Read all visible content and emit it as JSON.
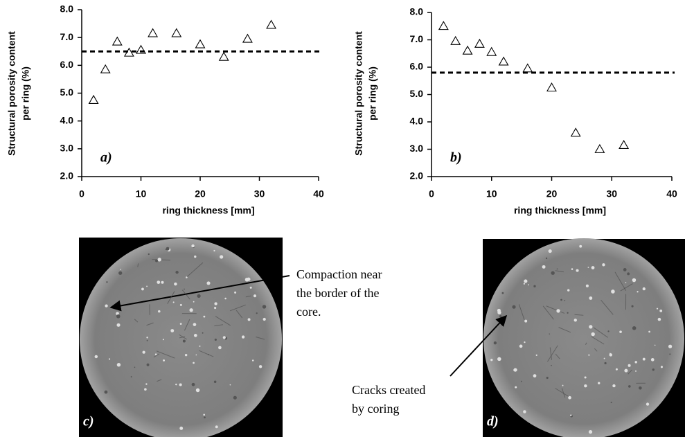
{
  "chart_data": [
    {
      "type": "scatter",
      "panel_label": "a)",
      "xlabel": "ring thickness [mm]",
      "ylabel_lines": [
        "Structural porosity content",
        "per ring (%)"
      ],
      "x": [
        2,
        4,
        6,
        8,
        10,
        12,
        16,
        20,
        24,
        28,
        32
      ],
      "values": [
        4.75,
        5.85,
        6.85,
        6.45,
        6.55,
        7.15,
        7.15,
        6.75,
        6.3,
        6.95,
        7.45
      ],
      "color": "#000000",
      "marker": "triangle-open",
      "xlim": [
        0,
        40
      ],
      "xticks": [
        0,
        10,
        20,
        30,
        40
      ],
      "ylim": [
        2,
        8
      ],
      "yticks": [
        {
          "value": 2,
          "label": "2.0"
        },
        {
          "value": 3,
          "label": "3.0"
        },
        {
          "value": 4,
          "label": "4.0"
        },
        {
          "value": 5,
          "label": "5.0"
        },
        {
          "value": 6,
          "label": "6.0"
        },
        {
          "value": 7,
          "label": "7.0"
        },
        {
          "value": 8,
          "label": "8.0"
        }
      ],
      "reference_line": {
        "value": 6.5,
        "style": "dashed"
      }
    },
    {
      "type": "scatter",
      "panel_label": "b)",
      "xlabel": "ring thickness [mm]",
      "ylabel_lines": [
        "Structural porosity content",
        "per ring (%)"
      ],
      "x": [
        2,
        4,
        6,
        8,
        10,
        12,
        16,
        20,
        24,
        28,
        32
      ],
      "values": [
        7.5,
        6.95,
        6.6,
        6.85,
        6.55,
        6.2,
        5.95,
        5.25,
        3.6,
        3.0,
        3.15
      ],
      "color": "#000000",
      "marker": "triangle-open",
      "xlim": [
        0,
        40
      ],
      "xticks": [
        0,
        10,
        20,
        30,
        40
      ],
      "ylim": [
        2,
        8
      ],
      "yticks": [
        {
          "value": 2,
          "label": "2.0"
        },
        {
          "value": 3,
          "label": "3.0"
        },
        {
          "value": 4,
          "label": "4.0"
        },
        {
          "value": 5,
          "label": "5.0"
        },
        {
          "value": 6,
          "label": "6.0"
        },
        {
          "value": 7,
          "label": "7.0"
        },
        {
          "value": 8,
          "label": "8.0"
        }
      ],
      "reference_line": {
        "value": 5.8,
        "style": "dashed"
      }
    }
  ],
  "images": [
    {
      "label": "c)"
    },
    {
      "label": "d)"
    }
  ],
  "annotations": [
    {
      "lines": [
        "Compaction near",
        "the border of the",
        "core."
      ]
    },
    {
      "lines": [
        "Cracks created",
        "by coring"
      ]
    }
  ]
}
